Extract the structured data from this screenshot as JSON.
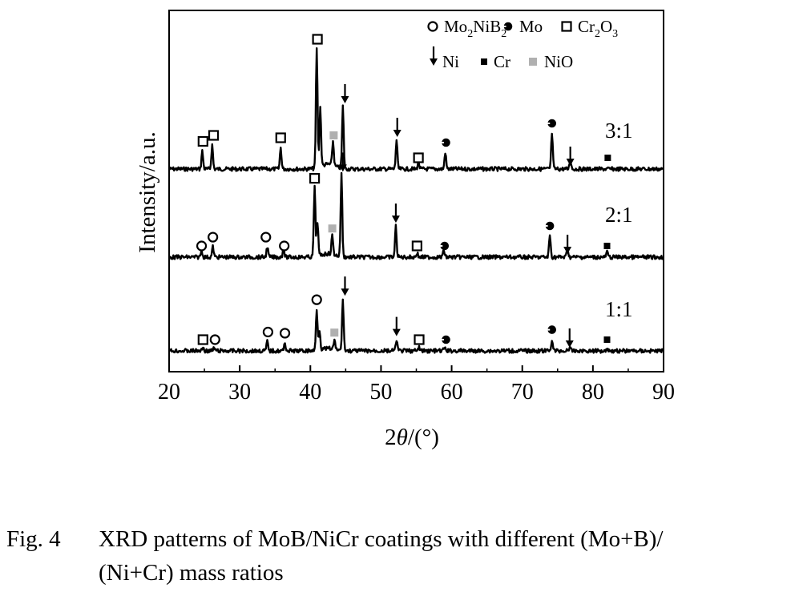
{
  "chart_data": {
    "type": "line",
    "xlabel_prefix": "2",
    "xlabel_symbol": "θ",
    "xlabel_suffix": "/(°)",
    "ylabel": "Intensity/a.u.",
    "xlim": [
      20,
      90
    ],
    "x_ticks": [
      "20",
      "30",
      "40",
      "50",
      "60",
      "70",
      "80",
      "90"
    ],
    "legend": {
      "placement": "top-right",
      "row1": [
        {
          "name": "Mo2NiB2",
          "symbol": "circle-icon",
          "base": "Mo",
          "sub1": "2",
          "mid": "NiB",
          "sub2": "2"
        },
        {
          "name": "Mo",
          "symbol": "half-filled-icon",
          "text": "Mo"
        },
        {
          "name": "Cr2O3",
          "symbol": "open-square-icon",
          "base": "Cr",
          "sub1": "2",
          "mid": "O",
          "sub2": "3"
        }
      ],
      "row2": [
        {
          "name": "Ni",
          "symbol": "down-arrow-icon",
          "text": "Ni"
        },
        {
          "name": "Cr",
          "symbol": "filled-square-icon",
          "text": "Cr"
        },
        {
          "name": "NiO",
          "symbol": "gray-square-icon",
          "text": "NiO"
        }
      ]
    },
    "series": [
      {
        "name": "3:1",
        "peaks": [
          [
            24.7,
            0.15
          ],
          [
            26.1,
            0.2
          ],
          [
            35.8,
            0.18
          ],
          [
            40.9,
            1.0
          ],
          [
            41.4,
            0.5
          ],
          [
            43.2,
            0.2
          ],
          [
            44.6,
            0.52
          ],
          [
            52.2,
            0.24
          ],
          [
            55.3,
            0.06
          ],
          [
            59.1,
            0.14
          ],
          [
            74.2,
            0.3
          ],
          [
            76.8,
            0.08
          ]
        ],
        "markers": [
          {
            "x": 24.8,
            "symbol": "open-square-icon"
          },
          {
            "x": 26.3,
            "symbol": "open-square-icon"
          },
          {
            "x": 35.8,
            "symbol": "open-square-icon"
          },
          {
            "x": 41.0,
            "symbol": "open-square-icon"
          },
          {
            "x": 43.3,
            "symbol": "gray-square-icon"
          },
          {
            "x": 44.9,
            "symbol": "down-arrow-icon"
          },
          {
            "x": 52.3,
            "symbol": "down-arrow-icon"
          },
          {
            "x": 55.3,
            "symbol": "open-square-icon"
          },
          {
            "x": 59.2,
            "symbol": "half-filled-icon"
          },
          {
            "x": 74.2,
            "symbol": "half-filled-icon"
          },
          {
            "x": 76.8,
            "symbol": "down-arrow-icon"
          },
          {
            "x": 82.1,
            "symbol": "filled-square-icon"
          }
        ]
      },
      {
        "name": "2:1",
        "peaks": [
          [
            24.6,
            0.08
          ],
          [
            26.2,
            0.12
          ],
          [
            33.9,
            0.12
          ],
          [
            36.2,
            0.1
          ],
          [
            40.6,
            0.8
          ],
          [
            41.0,
            0.4
          ],
          [
            43.1,
            0.22
          ],
          [
            44.4,
            0.95
          ],
          [
            52.1,
            0.36
          ],
          [
            55.1,
            0.05
          ],
          [
            58.9,
            0.08
          ],
          [
            73.9,
            0.25
          ],
          [
            76.4,
            0.1
          ],
          [
            82.0,
            0.06
          ]
        ],
        "markers": [
          {
            "x": 24.6,
            "symbol": "circle-icon"
          },
          {
            "x": 26.2,
            "symbol": "circle-icon"
          },
          {
            "x": 33.7,
            "symbol": "circle-icon"
          },
          {
            "x": 36.3,
            "symbol": "circle-icon"
          },
          {
            "x": 40.6,
            "symbol": "open-square-icon"
          },
          {
            "x": 43.1,
            "symbol": "gray-square-icon"
          },
          {
            "x": 44.6,
            "symbol": "down-arrow-icon"
          },
          {
            "x": 52.1,
            "symbol": "down-arrow-icon"
          },
          {
            "x": 55.1,
            "symbol": "open-square-icon"
          },
          {
            "x": 59.0,
            "symbol": "half-filled-icon"
          },
          {
            "x": 73.9,
            "symbol": "half-filled-icon"
          },
          {
            "x": 76.4,
            "symbol": "down-arrow-icon"
          },
          {
            "x": 82.0,
            "symbol": "filled-square-icon"
          }
        ]
      },
      {
        "name": "1:1",
        "peaks": [
          [
            24.8,
            0.06
          ],
          [
            26.4,
            0.05
          ],
          [
            33.9,
            0.16
          ],
          [
            36.4,
            0.14
          ],
          [
            40.9,
            0.72
          ],
          [
            41.3,
            0.35
          ],
          [
            43.4,
            0.15
          ],
          [
            44.6,
            0.9
          ],
          [
            52.2,
            0.2
          ],
          [
            55.4,
            0.06
          ],
          [
            59.0,
            0.06
          ],
          [
            74.2,
            0.2
          ],
          [
            76.7,
            0.06
          ],
          [
            82.0,
            0.05
          ]
        ],
        "markers": [
          {
            "x": 24.8,
            "symbol": "open-square-icon"
          },
          {
            "x": 26.5,
            "symbol": "circle-icon"
          },
          {
            "x": 34.0,
            "symbol": "circle-icon"
          },
          {
            "x": 36.4,
            "symbol": "circle-icon"
          },
          {
            "x": 40.9,
            "symbol": "circle-icon"
          },
          {
            "x": 43.4,
            "symbol": "gray-square-icon"
          },
          {
            "x": 44.9,
            "symbol": "down-arrow-icon"
          },
          {
            "x": 52.2,
            "symbol": "down-arrow-icon"
          },
          {
            "x": 55.4,
            "symbol": "open-square-icon"
          },
          {
            "x": 59.2,
            "symbol": "half-filled-icon"
          },
          {
            "x": 74.2,
            "symbol": "half-filled-icon"
          },
          {
            "x": 76.7,
            "symbol": "down-arrow-icon"
          },
          {
            "x": 82.0,
            "symbol": "filled-square-icon"
          }
        ]
      }
    ]
  },
  "caption": {
    "label": "Fig. 4",
    "line1": "XRD patterns of MoB/NiCr coatings with different (Mo+B)/",
    "line2": "(Ni+Cr) mass ratios"
  }
}
